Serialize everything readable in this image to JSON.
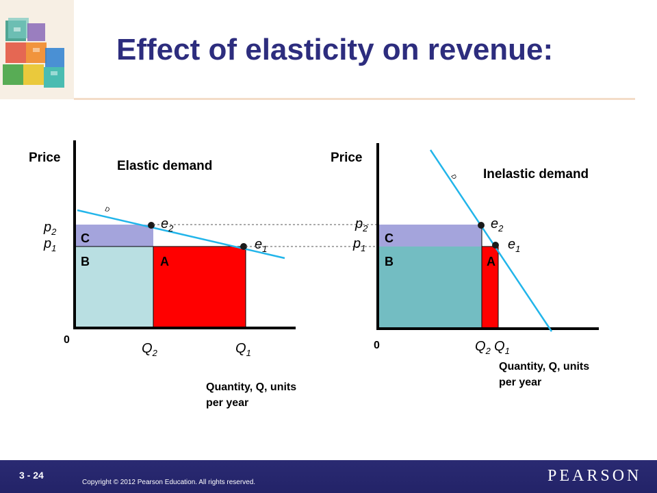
{
  "slide": {
    "title": "Effect of elasticity on revenue:",
    "number": "3 - 24",
    "copyright": "Copyright © 2012  Pearson Education. All rights reserved.",
    "brand": "PEARSON"
  },
  "colors": {
    "title": "#2d2d7e",
    "footer": "#25256b",
    "area_c": "#a4a4dc",
    "area_b_left": "#b9dfe2",
    "area_b_right": "#73bdc2",
    "area_a": "#ff0000",
    "demand_line": "#22b5ea"
  },
  "left_graph": {
    "y_label": "Price",
    "curve_label": "Elastic demand",
    "demand_label": "D",
    "origin": "0",
    "p2": "p",
    "p2_sub": "2",
    "p1": "p",
    "p1_sub": "1",
    "e2": "e",
    "e2_sub": "2",
    "e1": "e",
    "e1_sub": "1",
    "area_c": "C",
    "area_b": "B",
    "area_a": "A",
    "q2": "Q",
    "q2_sub": "2",
    "q1": "Q",
    "q1_sub": "1",
    "x_label_line1": "Quantity, Q, units",
    "x_label_line2": "per year"
  },
  "right_graph": {
    "y_label": "Price",
    "curve_label": "Inelastic demand",
    "demand_label": "D",
    "origin": "0",
    "p2": "p",
    "p2_sub": "2",
    "p1": "p",
    "p1_sub": "1",
    "e2": "e",
    "e2_sub": "2",
    "e1": "e",
    "e1_sub": "1",
    "area_c": "C",
    "area_b": "B",
    "area_a": "A",
    "q2": "Q",
    "q2_sub": "2",
    "q1": "Q",
    "q1_sub": "1",
    "x_label_line1": "Quantity, Q, units",
    "x_label_line2": "per year"
  }
}
